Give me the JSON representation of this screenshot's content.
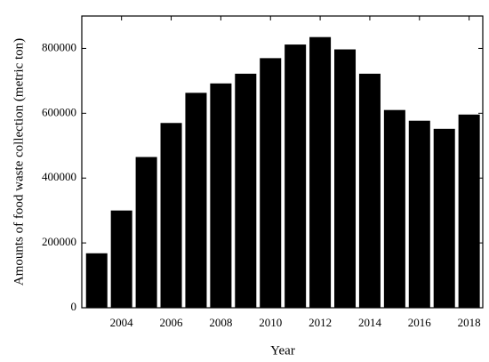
{
  "chart_data": {
    "type": "bar",
    "x": [
      2003,
      2004,
      2005,
      2006,
      2007,
      2008,
      2009,
      2010,
      2011,
      2012,
      2013,
      2014,
      2015,
      2016,
      2017,
      2018
    ],
    "values": [
      168000,
      300000,
      465000,
      570000,
      663000,
      692000,
      722000,
      770000,
      812000,
      835000,
      797000,
      722000,
      610000,
      577000,
      552000,
      596000
    ],
    "color": "#000000",
    "xlabel": "Year",
    "ylabel": "Amounts of food waste collection (metric ton)",
    "xlim": [
      2002.4,
      2018.55
    ],
    "xticks": [
      2004,
      2006,
      2008,
      2010,
      2012,
      2014,
      2016,
      2018
    ],
    "ylim": [
      0,
      900000
    ],
    "yticks": [
      0,
      200000,
      400000,
      600000,
      800000
    ]
  }
}
